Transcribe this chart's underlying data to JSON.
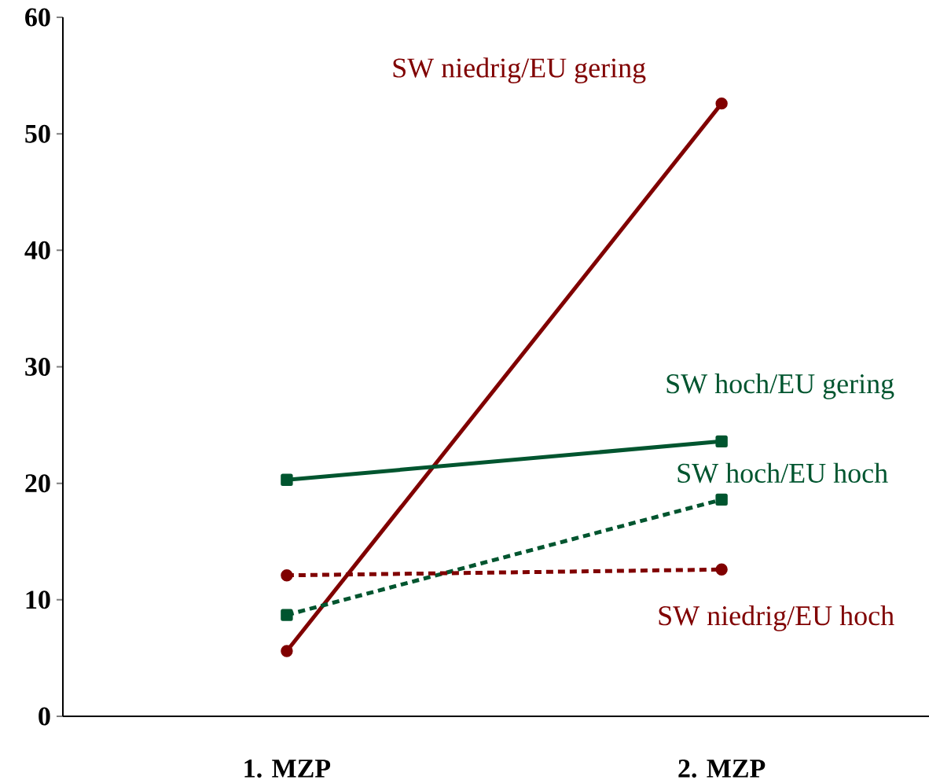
{
  "chart_data": {
    "type": "line",
    "categories": [
      "1. MZP",
      "2. MZP"
    ],
    "ylim": [
      0,
      60
    ],
    "yticks": [
      0,
      10,
      20,
      30,
      40,
      50,
      60
    ],
    "series": [
      {
        "name": "SW niedrig/EU gering",
        "color": "#800000",
        "values": [
          5.6,
          52.6
        ],
        "marker": "circle",
        "line_style": "solid"
      },
      {
        "name": "SW hoch/EU gering",
        "color": "#00552f",
        "values": [
          20.3,
          23.6
        ],
        "marker": "square",
        "line_style": "solid"
      },
      {
        "name": "SW hoch/EU hoch",
        "color": "#00552f",
        "values": [
          8.7,
          18.6
        ],
        "marker": "square",
        "line_style": "dashed"
      },
      {
        "name": "SW niedrig/EU hoch",
        "color": "#800000",
        "values": [
          12.1,
          12.6
        ],
        "marker": "circle",
        "line_style": "dashed"
      }
    ]
  }
}
